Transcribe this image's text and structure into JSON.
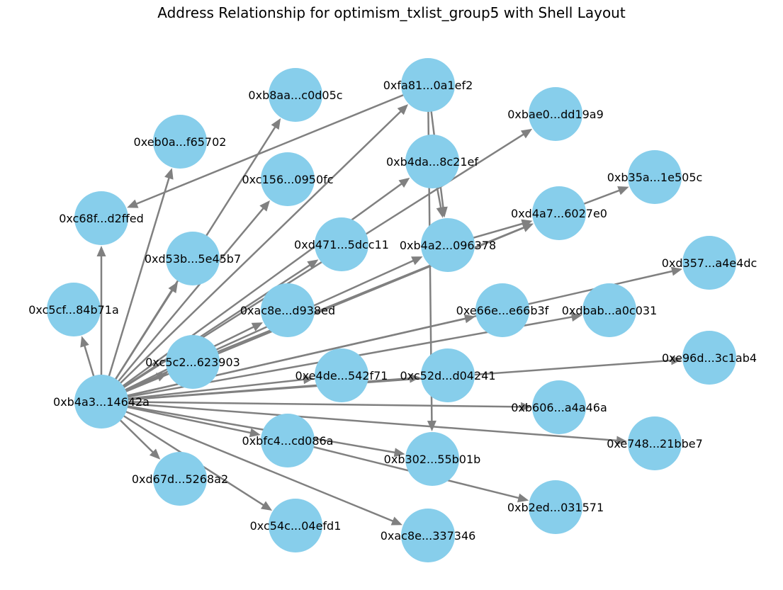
{
  "title": "Address Relationship for optimism_txlist_group5 with Shell Layout",
  "colors": {
    "node": "#87CEEB",
    "edge": "#808080",
    "label": "#000000"
  },
  "graph": {
    "nodes": [
      {
        "id": "hub",
        "label": "0xb4a3...14642a"
      },
      {
        "id": "c5cf",
        "label": "0xc5cf...84b71a"
      },
      {
        "id": "c68f",
        "label": "0xc68f...d2ffed"
      },
      {
        "id": "eb0a",
        "label": "0xeb0a...f65702"
      },
      {
        "id": "b8aa",
        "label": "0xb8aa...c0d05c"
      },
      {
        "id": "fa81",
        "label": "0xfa81...0a1ef2"
      },
      {
        "id": "bae0",
        "label": "0xbae0...dd19a9"
      },
      {
        "id": "b35a",
        "label": "0xb35a...1e505c"
      },
      {
        "id": "d357",
        "label": "0xd357...a4e4dc"
      },
      {
        "id": "e96d",
        "label": "0xe96d...3c1ab4"
      },
      {
        "id": "e748",
        "label": "0xe748...21bbe7"
      },
      {
        "id": "b2ed",
        "label": "0xb2ed...031571"
      },
      {
        "id": "ac8e3",
        "label": "0xac8e...337346"
      },
      {
        "id": "c54c",
        "label": "0xc54c...04efd1"
      },
      {
        "id": "d67d",
        "label": "0xd67d...5268a2"
      },
      {
        "id": "c156",
        "label": "0xc156...0950fc"
      },
      {
        "id": "d53b",
        "label": "0xd53b...5e45b7"
      },
      {
        "id": "b4da",
        "label": "0xb4da...8c21ef"
      },
      {
        "id": "d471",
        "label": "0xd471...5dcc11"
      },
      {
        "id": "b4a2",
        "label": "0xb4a2...096378"
      },
      {
        "id": "d4a7",
        "label": "0xd4a7...6027e0"
      },
      {
        "id": "ac8ed",
        "label": "0xac8e...d938ed"
      },
      {
        "id": "c5c2",
        "label": "0xc5c2...623903"
      },
      {
        "id": "e66e",
        "label": "0xe66e...e66b3f"
      },
      {
        "id": "dbab",
        "label": "0xdbab...a0c031"
      },
      {
        "id": "e4de",
        "label": "0xe4de...542f71"
      },
      {
        "id": "c52d",
        "label": "0xc52d...d04241"
      },
      {
        "id": "b606",
        "label": "0xb606...a4a46a"
      },
      {
        "id": "bfc4",
        "label": "0xbfc4...cd086a"
      },
      {
        "id": "b302",
        "label": "0xb302...55b01b"
      }
    ],
    "edges": [
      [
        "hub",
        "c5cf"
      ],
      [
        "hub",
        "c68f"
      ],
      [
        "hub",
        "eb0a"
      ],
      [
        "hub",
        "b8aa"
      ],
      [
        "hub",
        "fa81"
      ],
      [
        "hub",
        "bae0"
      ],
      [
        "hub",
        "c156"
      ],
      [
        "hub",
        "d53b"
      ],
      [
        "hub",
        "d471"
      ],
      [
        "hub",
        "b4da"
      ],
      [
        "hub",
        "b4a2"
      ],
      [
        "hub",
        "d4a7"
      ],
      [
        "hub",
        "ac8ed"
      ],
      [
        "hub",
        "c5c2"
      ],
      [
        "hub",
        "d357"
      ],
      [
        "hub",
        "e66e"
      ],
      [
        "hub",
        "dbab"
      ],
      [
        "hub",
        "e4de"
      ],
      [
        "hub",
        "c52d"
      ],
      [
        "hub",
        "e96d"
      ],
      [
        "hub",
        "b606"
      ],
      [
        "hub",
        "e748"
      ],
      [
        "hub",
        "bfc4"
      ],
      [
        "hub",
        "b302"
      ],
      [
        "hub",
        "d67d"
      ],
      [
        "hub",
        "c54c"
      ],
      [
        "hub",
        "ac8e3"
      ],
      [
        "fa81",
        "c68f"
      ],
      [
        "fa81",
        "b4a2"
      ],
      [
        "fa81",
        "b302"
      ],
      [
        "b4da",
        "b4a2"
      ],
      [
        "d4a7",
        "b35a"
      ],
      [
        "b4a2",
        "d4a7"
      ],
      [
        "c5c2",
        "d4a7"
      ],
      [
        "bfc4",
        "b2ed"
      ]
    ]
  }
}
